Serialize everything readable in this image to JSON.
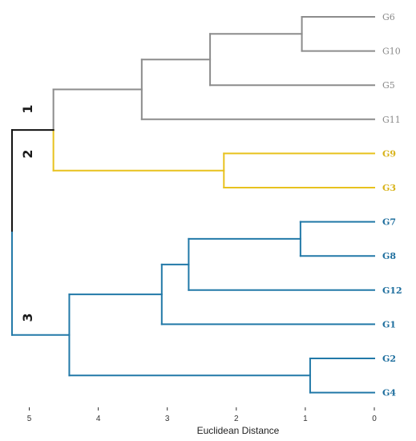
{
  "axis": {
    "title": "Euclidean Distance",
    "ticks": [
      "5",
      "4",
      "3",
      "2",
      "1",
      "0"
    ],
    "tick_values": [
      5,
      4,
      3,
      2,
      1,
      0
    ],
    "range": [
      0,
      5.4
    ],
    "direction": "reversed"
  },
  "colors": {
    "gray": "#8c8c8c",
    "yellow": "#e8c21e",
    "blue": "#2279a8",
    "root": "#111111",
    "gray_label": "#8a8a8a",
    "yellow_label": "#d8b31a",
    "blue_label": "#1f6f9e"
  },
  "clusters": [
    {
      "label": "1",
      "color": "gray"
    },
    {
      "label": "2",
      "color": "yellow"
    },
    {
      "label": "3",
      "color": "blue"
    }
  ],
  "leaves": [
    {
      "id": "G6",
      "label": "G6",
      "color": "gray"
    },
    {
      "id": "G10",
      "label": "G10",
      "color": "gray"
    },
    {
      "id": "G5",
      "label": "G5",
      "color": "gray"
    },
    {
      "id": "G11",
      "label": "G11",
      "color": "gray"
    },
    {
      "id": "G9",
      "label": "G9",
      "color": "yellow"
    },
    {
      "id": "G3",
      "label": "G3",
      "color": "yellow"
    },
    {
      "id": "G7",
      "label": "G7",
      "color": "blue"
    },
    {
      "id": "G8",
      "label": "G8",
      "color": "blue"
    },
    {
      "id": "G12",
      "label": "G12",
      "color": "blue"
    },
    {
      "id": "G1",
      "label": "G1",
      "color": "blue"
    },
    {
      "id": "G2",
      "label": "G2",
      "color": "blue"
    },
    {
      "id": "G4",
      "label": "G4",
      "color": "blue"
    }
  ],
  "merges": [
    {
      "id": "m1",
      "children": [
        "G6",
        "G10"
      ],
      "height": 1.05,
      "color": "gray"
    },
    {
      "id": "m2",
      "children": [
        "m1",
        "G5"
      ],
      "height": 2.38,
      "color": "gray"
    },
    {
      "id": "m3",
      "children": [
        "m2",
        "G11"
      ],
      "height": 3.37,
      "color": "gray"
    },
    {
      "id": "m4",
      "children": [
        "G9",
        "G3"
      ],
      "height": 2.18,
      "color": "yellow"
    },
    {
      "id": "m5",
      "children": [
        "m3",
        "m4"
      ],
      "height": 4.65,
      "color": "yellow",
      "upper_color": "gray"
    },
    {
      "id": "m6",
      "children": [
        "G7",
        "G8"
      ],
      "height": 1.07,
      "color": "blue"
    },
    {
      "id": "m7",
      "children": [
        "m6",
        "G12"
      ],
      "height": 2.69,
      "color": "blue"
    },
    {
      "id": "m8",
      "children": [
        "m7",
        "G1"
      ],
      "height": 3.08,
      "color": "blue"
    },
    {
      "id": "m9",
      "children": [
        "G2",
        "G4"
      ],
      "height": 0.93,
      "color": "blue"
    },
    {
      "id": "m10",
      "children": [
        "m8",
        "m9"
      ],
      "height": 4.42,
      "color": "blue"
    },
    {
      "id": "root",
      "children": [
        "m5",
        "m10"
      ],
      "height": 5.25,
      "color": "root",
      "lower_color": "blue"
    }
  ]
}
